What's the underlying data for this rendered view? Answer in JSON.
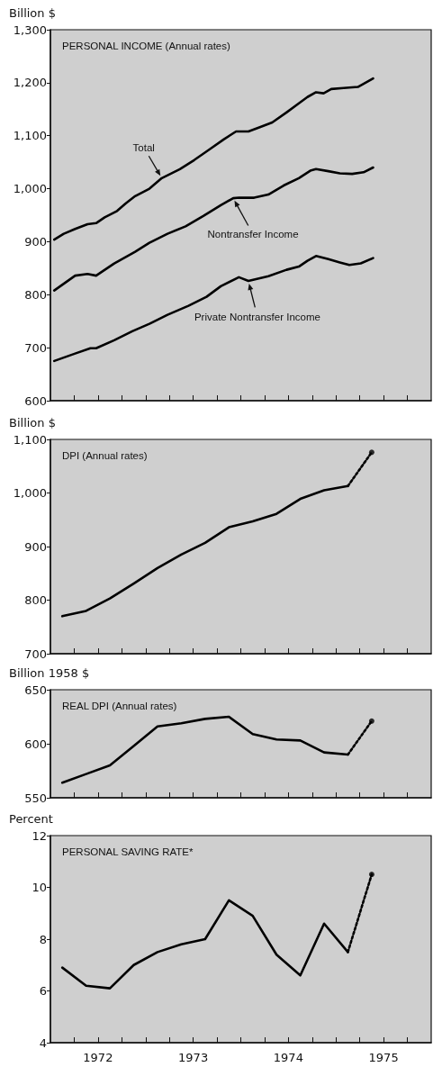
{
  "chart_data": [
    {
      "type": "line",
      "title": "PERSONAL INCOME (Annual rates)",
      "ylabel": "Billion $",
      "xlim": [
        1972,
        1976
      ],
      "ylim": [
        600,
        1300
      ],
      "yticks": [
        600,
        700,
        800,
        900,
        {
          "value": 1000,
          "label": "1,000"
        },
        {
          "value": 1100,
          "label": "1,100"
        },
        {
          "value": 1200,
          "label": "1,200"
        },
        {
          "value": 1300,
          "label": "1,300"
        }
      ],
      "xticks": [
        {
          "value": 1972.25,
          "label": null
        },
        {
          "value": 1972.5,
          "label": null
        },
        {
          "value": 1972.75,
          "label": null
        },
        {
          "value": 1973,
          "label": null
        },
        {
          "value": 1973.25,
          "label": null
        },
        {
          "value": 1973.5,
          "label": null
        },
        {
          "value": 1973.75,
          "label": null
        },
        {
          "value": 1974,
          "label": null
        },
        {
          "value": 1974.25,
          "label": null
        },
        {
          "value": 1974.5,
          "label": null
        },
        {
          "value": 1974.75,
          "label": null
        },
        {
          "value": 1975,
          "label": null
        },
        {
          "value": 1975.25,
          "label": null
        },
        {
          "value": 1975.5,
          "label": null
        },
        {
          "value": 1975.75,
          "label": null
        }
      ],
      "tick_labels": "y",
      "marker": "none",
      "line_style": "solid",
      "series": [
        {
          "name": "Total",
          "color": "#000000",
          "x": [
            1972.04,
            1972.14,
            1972.26,
            1972.39,
            1972.48,
            1972.57,
            1972.7,
            1972.79,
            1972.89,
            1973.04,
            1973.17,
            1973.36,
            1973.51,
            1973.67,
            1973.82,
            1973.95,
            1974.08,
            1974.2,
            1974.33,
            1974.48,
            1974.61,
            1974.7,
            1974.79,
            1974.87,
            1974.95,
            1975.08,
            1975.23,
            1975.39
          ],
          "values": [
            904,
            915,
            924,
            933,
            935,
            946,
            958,
            972,
            986,
            1000,
            1020,
            1037,
            1054,
            1074,
            1093,
            1108,
            1108,
            1116,
            1125,
            1144,
            1161,
            1173,
            1182,
            1180,
            1188,
            1190,
            1192,
            1208
          ]
        },
        {
          "name": "Nontransfer Income",
          "color": "#000000",
          "x": [
            1972.04,
            1972.26,
            1972.39,
            1972.48,
            1972.67,
            1972.89,
            1973.04,
            1973.23,
            1973.42,
            1973.61,
            1973.79,
            1973.92,
            1973.98,
            1974.14,
            1974.29,
            1974.45,
            1974.61,
            1974.73,
            1974.79,
            1974.92,
            1975.04,
            1975.17,
            1975.29,
            1975.39
          ],
          "values": [
            808,
            836,
            839,
            836,
            859,
            881,
            898,
            915,
            929,
            949,
            969,
            982,
            983,
            983,
            989,
            1006,
            1020,
            1034,
            1037,
            1033,
            1029,
            1028,
            1031,
            1040
          ]
        },
        {
          "name": "Private Nontransfer Income",
          "color": "#000000",
          "x": [
            1972.04,
            1972.26,
            1972.42,
            1972.48,
            1972.67,
            1972.86,
            1973.04,
            1973.23,
            1973.45,
            1973.64,
            1973.79,
            1973.98,
            1974.08,
            1974.29,
            1974.48,
            1974.61,
            1974.7,
            1974.79,
            1974.92,
            1975.04,
            1975.14,
            1975.26,
            1975.39
          ],
          "values": [
            675,
            689,
            699,
            699,
            714,
            731,
            745,
            762,
            779,
            796,
            816,
            833,
            826,
            835,
            847,
            853,
            864,
            873,
            867,
            861,
            856,
            859,
            869
          ]
        }
      ]
    },
    {
      "type": "line",
      "title": "DPI (Annual rates)",
      "ylabel": "Billion $",
      "xlim": [
        1972,
        1976
      ],
      "ylim": [
        700,
        1100
      ],
      "yticks": [
        700,
        800,
        900,
        {
          "value": 1000,
          "label": "1,000"
        },
        {
          "value": 1100,
          "label": "1,100"
        }
      ],
      "xticks": [
        {
          "value": 1972.25,
          "label": null
        },
        {
          "value": 1972.5,
          "label": null
        },
        {
          "value": 1972.75,
          "label": null
        },
        {
          "value": 1973,
          "label": null
        },
        {
          "value": 1973.25,
          "label": null
        },
        {
          "value": 1973.5,
          "label": null
        },
        {
          "value": 1973.75,
          "label": null
        },
        {
          "value": 1974,
          "label": null
        },
        {
          "value": 1974.25,
          "label": null
        },
        {
          "value": 1974.5,
          "label": null
        },
        {
          "value": 1974.75,
          "label": null
        },
        {
          "value": 1975,
          "label": null
        },
        {
          "value": 1975.25,
          "label": null
        },
        {
          "value": 1975.5,
          "label": null
        },
        {
          "value": 1975.75,
          "label": null
        }
      ],
      "tick_labels": "y",
      "marker": "none",
      "line_style": "solid",
      "series": [
        {
          "color": "#000000",
          "x": [
            1972.125,
            1972.375,
            1972.625,
            1972.875,
            1973.125,
            1973.375,
            1973.625,
            1973.875,
            1974.125,
            1974.375,
            1974.625,
            1974.875,
            1975.125
          ],
          "values": [
            770,
            780,
            803,
            831,
            860,
            885,
            907,
            936,
            947,
            961,
            989,
            1005,
            1013
          ]
        },
        {
          "color": "#000000",
          "line_style": "dotted",
          "x": [
            1975.125,
            1975.375
          ],
          "values": [
            1013,
            1076
          ]
        },
        {
          "type": "scatter",
          "marker": "circle",
          "color": "#000000",
          "x": [
            1975.375
          ],
          "values": [
            1076
          ]
        }
      ]
    },
    {
      "type": "line",
      "title": "REAL DPI (Annual rates)",
      "ylabel": "Billion 1958 $",
      "xlim": [
        1972,
        1976
      ],
      "ylim": [
        550,
        650
      ],
      "yticks": [
        550,
        600,
        650
      ],
      "xticks": [
        {
          "value": 1972.25,
          "label": null
        },
        {
          "value": 1972.5,
          "label": null
        },
        {
          "value": 1972.75,
          "label": null
        },
        {
          "value": 1973,
          "label": null
        },
        {
          "value": 1973.25,
          "label": null
        },
        {
          "value": 1973.5,
          "label": null
        },
        {
          "value": 1973.75,
          "label": null
        },
        {
          "value": 1974,
          "label": null
        },
        {
          "value": 1974.25,
          "label": null
        },
        {
          "value": 1974.5,
          "label": null
        },
        {
          "value": 1974.75,
          "label": null
        },
        {
          "value": 1975,
          "label": null
        },
        {
          "value": 1975.25,
          "label": null
        },
        {
          "value": 1975.5,
          "label": null
        },
        {
          "value": 1975.75,
          "label": null
        }
      ],
      "tick_labels": "y",
      "marker": "none",
      "line_style": "solid",
      "series": [
        {
          "color": "#000000",
          "x": [
            1972.125,
            1972.375,
            1972.625,
            1972.875,
            1973.125,
            1973.375,
            1973.625,
            1973.875,
            1974.125,
            1974.375,
            1974.625,
            1974.875,
            1975.125
          ],
          "values": [
            564,
            572,
            580,
            598,
            616,
            619,
            623,
            625,
            609,
            604,
            603,
            592,
            590
          ]
        },
        {
          "color": "#000000",
          "line_style": "dotted",
          "x": [
            1975.125,
            1975.375
          ],
          "values": [
            590,
            621
          ]
        },
        {
          "type": "scatter",
          "marker": "circle",
          "color": "#000000",
          "x": [
            1975.375
          ],
          "values": [
            621
          ]
        }
      ]
    },
    {
      "type": "line",
      "title": "PERSONAL SAVING RATE*",
      "ylabel": "Percent",
      "xlim": [
        1972,
        1976
      ],
      "ylim": [
        4,
        12
      ],
      "yticks": [
        4,
        6,
        8,
        10,
        12
      ],
      "xticks": [
        {
          "value": 1972.25,
          "label": null
        },
        {
          "value": 1972.5,
          "label": "1972"
        },
        {
          "value": 1972.75,
          "label": null
        },
        {
          "value": 1973,
          "label": null
        },
        {
          "value": 1973.25,
          "label": null
        },
        {
          "value": 1973.5,
          "label": "1973"
        },
        {
          "value": 1973.75,
          "label": null
        },
        {
          "value": 1974,
          "label": null
        },
        {
          "value": 1974.25,
          "label": null
        },
        {
          "value": 1974.5,
          "label": "1974"
        },
        {
          "value": 1974.75,
          "label": null
        },
        {
          "value": 1975,
          "label": null
        },
        {
          "value": 1975.25,
          "label": null
        },
        {
          "value": 1975.5,
          "label": "1975"
        },
        {
          "value": 1975.75,
          "label": null
        }
      ],
      "marker": "none",
      "line_style": "solid",
      "series": [
        {
          "color": "#000000",
          "x": [
            1972.125,
            1972.375,
            1972.625,
            1972.875,
            1973.125,
            1973.375,
            1973.625,
            1973.875,
            1974.125,
            1974.375,
            1974.625,
            1974.875,
            1975.125
          ],
          "values": [
            6.9,
            6.2,
            6.1,
            7.0,
            7.5,
            7.8,
            8.0,
            9.5,
            8.9,
            7.4,
            6.6,
            8.6,
            7.5
          ]
        },
        {
          "color": "#000000",
          "line_style": "dotted",
          "x": [
            1975.125,
            1975.375
          ],
          "values": [
            7.5,
            10.5
          ]
        },
        {
          "type": "scatter",
          "marker": "circle",
          "color": "#000000",
          "x": [
            1975.375
          ],
          "values": [
            10.5
          ]
        }
      ]
    }
  ]
}
